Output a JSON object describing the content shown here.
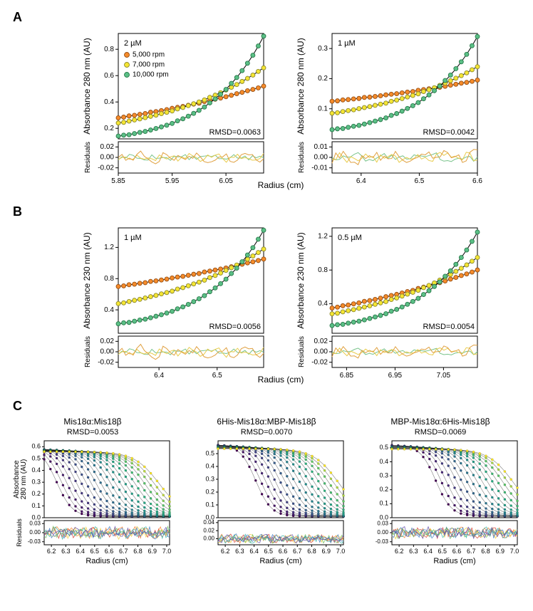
{
  "global": {
    "series_colors": {
      "5000rpm": {
        "fill": "#f58b2a",
        "stroke": "#964e13"
      },
      "7000rpm": {
        "fill": "#f5e533",
        "stroke": "#8c8a2d"
      },
      "10000rpm": {
        "fill": "#5bbf86",
        "stroke": "#287a4a"
      }
    },
    "residual_line_colors": [
      "#78c38a",
      "#e8cc4d",
      "#e0a040"
    ],
    "bg": "#ffffff",
    "axes_color": "#000000",
    "tick_color": "#000000",
    "tick_fontsize": 10,
    "label_fontsize": 12,
    "legend_fontsize": 10,
    "rmsd_fontsize": 11,
    "panel_label_fontsize": 18,
    "marker_radius": 3.0,
    "marker_stroke_width": 0.9,
    "fit_line_width": 1.0,
    "residual_line_width": 1.0
  },
  "panelA": {
    "panel_label": "A",
    "ylabel_main": "Absorbance 280 nm (AU)",
    "ylabel_res": "Residuals",
    "xlabel": "Radius (cm)",
    "legend": [
      {
        "series": "5000rpm",
        "text": "5,000 rpm"
      },
      {
        "series": "7000rpm",
        "text": "7,000 rpm"
      },
      {
        "series": "10000rpm",
        "text": "10,000 rpm"
      }
    ],
    "plots": [
      {
        "conc_label": "2 µM",
        "rmsd_text": "RMSD=0.0063",
        "main": {
          "xlim": [
            5.85,
            6.12
          ],
          "xticks": [
            5.85,
            5.95,
            6.05
          ],
          "ylim": [
            0.12,
            0.92
          ],
          "yticks": [
            0.2,
            0.4,
            0.6,
            0.8
          ],
          "series": {
            "5000rpm": {
              "y0": 0.28,
              "y1": 0.52,
              "curv": 0.7
            },
            "7000rpm": {
              "y0": 0.24,
              "y1": 0.66,
              "curv": 1.4
            },
            "10000rpm": {
              "y0": 0.14,
              "y1": 0.9,
              "curv": 2.6
            }
          }
        },
        "residuals": {
          "xlim": [
            5.85,
            6.12
          ],
          "ylim": [
            -0.03,
            0.03
          ],
          "yticks": [
            -0.02,
            0.0,
            0.02
          ],
          "series_amp": {
            "5000rpm": 0.006,
            "7000rpm": 0.008,
            "10000rpm": 0.011
          }
        }
      },
      {
        "conc_label": "1 µM",
        "rmsd_text": "RMSD=0.0042",
        "main": {
          "xlim": [
            6.35,
            6.6
          ],
          "xticks": [
            6.4,
            6.5,
            6.6
          ],
          "ylim": [
            0.0,
            0.35
          ],
          "yticks": [
            0.1,
            0.2,
            0.3
          ],
          "series": {
            "5000rpm": {
              "y0": 0.125,
              "y1": 0.195,
              "curv": 0.7
            },
            "7000rpm": {
              "y0": 0.085,
              "y1": 0.24,
              "curv": 1.4
            },
            "10000rpm": {
              "y0": 0.03,
              "y1": 0.34,
              "curv": 2.6
            }
          }
        },
        "residuals": {
          "xlim": [
            6.35,
            6.6
          ],
          "ylim": [
            -0.015,
            0.015
          ],
          "yticks": [
            -0.01,
            0.0,
            0.01
          ],
          "series_amp": {
            "5000rpm": 0.004,
            "7000rpm": 0.005,
            "10000rpm": 0.007
          }
        }
      }
    ]
  },
  "panelB": {
    "panel_label": "B",
    "ylabel_main": "Absorbance 230 nm (AU)",
    "ylabel_res": "Residuals",
    "xlabel": "Radius (cm)",
    "plots": [
      {
        "conc_label": "1 µM",
        "rmsd_text": "RMSD=0.0056",
        "main": {
          "xlim": [
            6.33,
            6.58
          ],
          "xticks": [
            6.4,
            6.5
          ],
          "ylim": [
            0.1,
            1.45
          ],
          "yticks": [
            0.4,
            0.8,
            1.2
          ],
          "series": {
            "5000rpm": {
              "y0": 0.7,
              "y1": 1.05,
              "curv": 0.6
            },
            "7000rpm": {
              "y0": 0.48,
              "y1": 1.18,
              "curv": 1.3
            },
            "10000rpm": {
              "y0": 0.22,
              "y1": 1.42,
              "curv": 2.5
            }
          }
        },
        "residuals": {
          "xlim": [
            6.33,
            6.58
          ],
          "ylim": [
            -0.03,
            0.03
          ],
          "yticks": [
            -0.02,
            0.0,
            0.02
          ],
          "series_amp": {
            "5000rpm": 0.006,
            "7000rpm": 0.009,
            "10000rpm": 0.013
          }
        }
      },
      {
        "conc_label": "0.5 µM",
        "rmsd_text": "RMSD=0.0054",
        "main": {
          "xlim": [
            6.82,
            7.12
          ],
          "xticks": [
            6.85,
            6.95,
            7.05
          ],
          "ylim": [
            0.05,
            1.3
          ],
          "yticks": [
            0.4,
            0.8,
            1.2
          ],
          "series": {
            "5000rpm": {
              "y0": 0.35,
              "y1": 0.8,
              "curv": 0.7
            },
            "7000rpm": {
              "y0": 0.28,
              "y1": 0.95,
              "curv": 1.4
            },
            "10000rpm": {
              "y0": 0.14,
              "y1": 1.25,
              "curv": 2.6
            }
          }
        },
        "residuals": {
          "xlim": [
            6.82,
            7.12
          ],
          "ylim": [
            -0.03,
            0.03
          ],
          "yticks": [
            -0.02,
            0.0,
            0.02
          ],
          "series_amp": {
            "5000rpm": 0.006,
            "7000rpm": 0.008,
            "10000rpm": 0.012
          }
        }
      }
    ]
  },
  "panelC": {
    "panel_label": "C",
    "ylabel_main": "Absorbance\n280 nm (AU)",
    "ylabel_res": "Residuals",
    "xlabel": "Radius (cm)",
    "viridis_stops": [
      [
        0.0,
        "#440154"
      ],
      [
        0.15,
        "#472c7a"
      ],
      [
        0.3,
        "#3b528b"
      ],
      [
        0.45,
        "#2c728e"
      ],
      [
        0.6,
        "#21918c"
      ],
      [
        0.75,
        "#28ae80"
      ],
      [
        0.88,
        "#5ec962"
      ],
      [
        1.0,
        "#fde725"
      ]
    ],
    "residual_rainbow": [
      "#d53e2e",
      "#f57d2a",
      "#f0cf3a",
      "#6ec05a",
      "#35b5a8",
      "#3a79c4",
      "#6247aa"
    ],
    "plots": [
      {
        "title": "Mis18α:Mis18β",
        "rmsd_text": "RMSD=0.0053",
        "main": {
          "xlim": [
            6.15,
            7.02
          ],
          "xticks": [
            6.2,
            6.3,
            6.4,
            6.5,
            6.6,
            6.7,
            6.8,
            6.9,
            7.0
          ],
          "ylim": [
            0.0,
            0.65
          ],
          "yticks": [
            0.0,
            0.1,
            0.2,
            0.3,
            0.4,
            0.5,
            0.6
          ],
          "n_curves": 22,
          "sat_min": 0.57,
          "hinge_span": [
            0.1,
            0.92
          ]
        },
        "residuals": {
          "xlim": [
            6.15,
            7.02
          ],
          "ylim": [
            -0.04,
            0.04
          ],
          "yticks": [
            -0.03,
            0.0,
            0.03
          ],
          "amp": 0.018
        }
      },
      {
        "title": "6His-Mis18α:MBP-Mis18β",
        "rmsd_text": "RMSD=0.0070",
        "main": {
          "xlim": [
            6.15,
            7.02
          ],
          "xticks": [
            6.2,
            6.3,
            6.4,
            6.5,
            6.6,
            6.7,
            6.8,
            6.9,
            7.0
          ],
          "ylim": [
            0.0,
            0.6
          ],
          "yticks": [
            0.0,
            0.1,
            0.2,
            0.3,
            0.4,
            0.5
          ],
          "n_curves": 18,
          "sat_min": 0.55,
          "hinge_span": [
            0.3,
            0.96
          ]
        },
        "residuals": {
          "xlim": [
            6.15,
            7.02
          ],
          "ylim": [
            -0.015,
            0.045
          ],
          "yticks": [
            0.0,
            0.02,
            0.04
          ],
          "amp": 0.01
        }
      },
      {
        "title": "MBP-Mis18α:6His-Mis18β",
        "rmsd_text": "RMSD=0.0069",
        "main": {
          "xlim": [
            6.15,
            7.02
          ],
          "xticks": [
            6.2,
            6.3,
            6.4,
            6.5,
            6.6,
            6.7,
            6.8,
            6.9,
            7.0
          ],
          "ylim": [
            0.0,
            0.55
          ],
          "yticks": [
            0.0,
            0.1,
            0.2,
            0.3,
            0.4,
            0.5
          ],
          "n_curves": 16,
          "sat_min": 0.5,
          "hinge_span": [
            0.35,
            0.97
          ]
        },
        "residuals": {
          "xlim": [
            6.15,
            7.02
          ],
          "ylim": [
            -0.04,
            0.04
          ],
          "yticks": [
            -0.03,
            0.0,
            0.03
          ],
          "amp": 0.017
        }
      }
    ]
  },
  "layout": {
    "miniW": 268,
    "miniH": 232,
    "mini_mainH": 148,
    "mini_resH": 44,
    "mini_marginL": 56,
    "mini_marginR": 8,
    "mini_marginT": 8,
    "mini_gapMR": 4,
    "mini_marginB": 28,
    "wideW": 228,
    "wideH": 192,
    "wide_mainH": 108,
    "wide_resH": 34,
    "wide_marginL": 46,
    "wide_marginR": 6,
    "wide_marginT": 4,
    "wide_gapMR": 4,
    "wide_marginB": 28
  }
}
